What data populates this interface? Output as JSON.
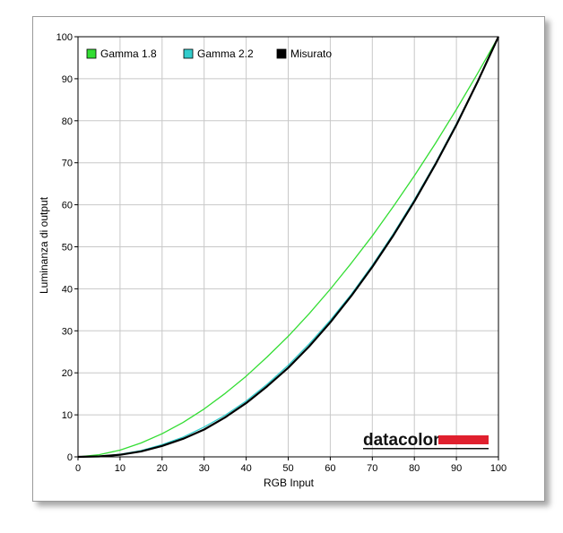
{
  "chart_data": {
    "type": "line",
    "title": "",
    "xlabel": "RGB Input",
    "ylabel": "Luminanza di output",
    "xlim": [
      0,
      100
    ],
    "ylim": [
      0,
      100
    ],
    "xticks": [
      0,
      10,
      20,
      30,
      40,
      50,
      60,
      70,
      80,
      90,
      100
    ],
    "yticks": [
      0,
      10,
      20,
      30,
      40,
      50,
      60,
      70,
      80,
      90,
      100
    ],
    "grid": true,
    "legend_position": "top-left",
    "series": [
      {
        "name": "Gamma 1.8",
        "color": "#33dd33",
        "x": [
          0,
          5,
          10,
          15,
          20,
          25,
          30,
          35,
          40,
          45,
          50,
          55,
          60,
          65,
          70,
          75,
          80,
          85,
          90,
          95,
          100
        ],
        "values": [
          0,
          0.5,
          1.6,
          3.3,
          5.5,
          8.2,
          11.4,
          15.1,
          19.2,
          23.8,
          28.7,
          34.1,
          39.9,
          46.1,
          52.6,
          59.6,
          66.9,
          74.6,
          82.7,
          91.2,
          100
        ]
      },
      {
        "name": "Gamma 2.2",
        "color": "#33cccc",
        "x": [
          0,
          5,
          10,
          15,
          20,
          25,
          30,
          35,
          40,
          45,
          50,
          55,
          60,
          65,
          70,
          75,
          80,
          85,
          90,
          95,
          100
        ],
        "values": [
          0,
          0.1,
          0.6,
          1.5,
          2.9,
          4.7,
          7.1,
          9.9,
          13.3,
          17.3,
          21.8,
          26.9,
          32.5,
          38.7,
          45.6,
          53.1,
          61.2,
          69.9,
          79.3,
          89.3,
          100
        ]
      },
      {
        "name": "Misurato",
        "color": "#000000",
        "x": [
          0,
          5,
          10,
          15,
          20,
          25,
          30,
          35,
          40,
          45,
          50,
          55,
          60,
          65,
          70,
          75,
          80,
          85,
          90,
          95,
          100
        ],
        "values": [
          0,
          0.1,
          0.5,
          1.3,
          2.6,
          4.3,
          6.5,
          9.4,
          12.8,
          16.8,
          21.2,
          26.3,
          32.0,
          38.3,
          45.2,
          52.7,
          60.8,
          69.6,
          79.0,
          89.2,
          100
        ]
      }
    ],
    "logo": {
      "text": "datacolor",
      "accent_color": "#e0202e"
    }
  }
}
